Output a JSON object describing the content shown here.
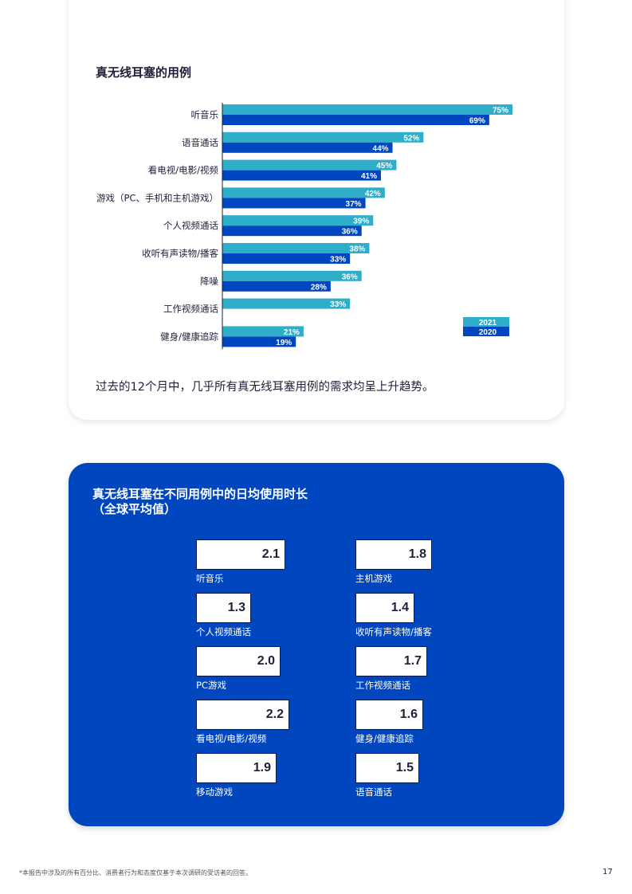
{
  "chart_data": {
    "type": "bar",
    "orientation": "horizontal",
    "title": "真无线耳塞的用例",
    "categories": [
      "听音乐",
      "语音通话",
      "看电视/电影/视频",
      "游戏（PC、手机和主机游戏）",
      "个人视频通话",
      "收听有声读物/播客",
      "降噪",
      "工作视频通话",
      "健身/健康追踪"
    ],
    "series": [
      {
        "name": "2021",
        "color": "#2eaec9",
        "values": [
          75,
          52,
          45,
          42,
          39,
          38,
          36,
          33,
          21
        ]
      },
      {
        "name": "2020",
        "color": "#0046bf",
        "values": [
          69,
          44,
          41,
          37,
          36,
          33,
          28,
          null,
          19
        ]
      }
    ],
    "value_suffix": "%",
    "legend_position": "bottom-right",
    "xlim": [
      0,
      75
    ]
  },
  "summary_text": "过去的12个月中，几乎所有真无线耳塞用例的需求均呈上升趋势。",
  "daily_usage": {
    "title_line1": "真无线耳塞在不同用例中的日均使用时长",
    "title_line2": "（全球平均值）",
    "max_value": 2.2,
    "left_column": [
      {
        "label": "听音乐",
        "value": "2.1"
      },
      {
        "label": "个人视频通话",
        "value": "1.3"
      },
      {
        "label": "PC游戏",
        "value": "2.0"
      },
      {
        "label": "看电视/电影/视频",
        "value": "2.2"
      },
      {
        "label": "移动游戏",
        "value": "1.9"
      }
    ],
    "right_column": [
      {
        "label": "主机游戏",
        "value": "1.8"
      },
      {
        "label": "收听有声读物/播客",
        "value": "1.4"
      },
      {
        "label": "工作视频通话",
        "value": "1.7"
      },
      {
        "label": "健身/健康追踪",
        "value": "1.6"
      },
      {
        "label": "语音通话",
        "value": "1.5"
      }
    ]
  },
  "footnote": "*本报告中涉及的所有百分比、消费者行为和态度仅基于本次调研的受访者的回答。",
  "page_number": "17"
}
